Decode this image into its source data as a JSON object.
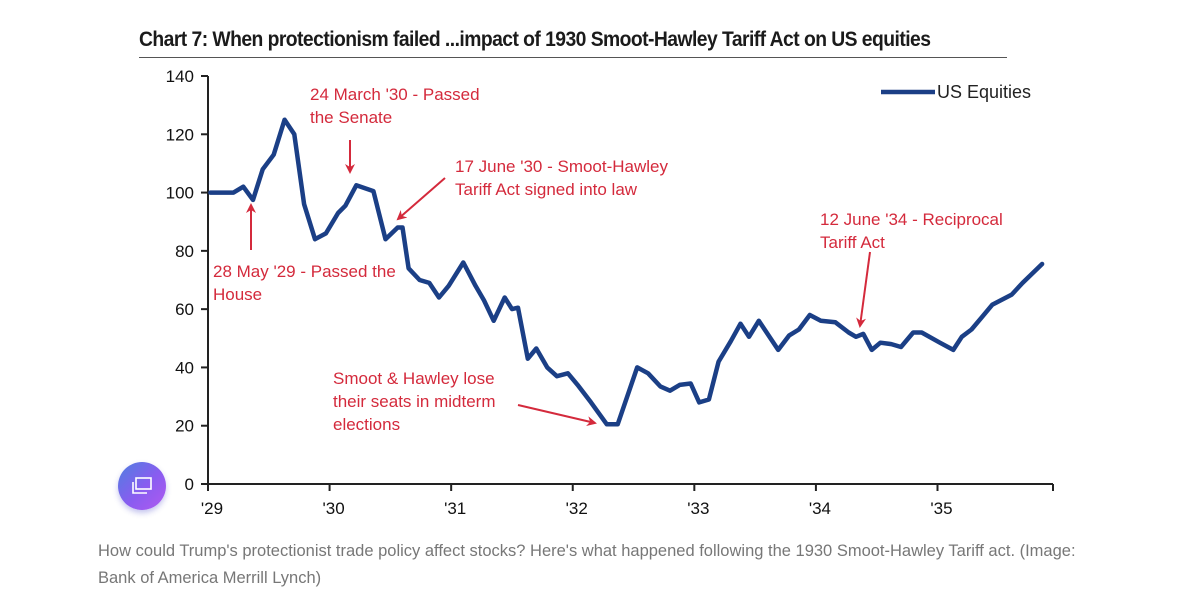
{
  "chart_data": {
    "type": "line",
    "title": "Chart 7: When protectionism failed ...impact of 1930 Smoot-Hawley Tariff Act on US equities",
    "xlabel": "",
    "ylabel": "",
    "xlim": [
      1929.0,
      1935.95
    ],
    "ylim": [
      0,
      140
    ],
    "x_ticks": [
      1929,
      1930,
      1931,
      1932,
      1933,
      1934,
      1935,
      1935.95
    ],
    "x_tick_labels": [
      "'29",
      "'30",
      "'31",
      "'32",
      "'33",
      "'34",
      "'35",
      ""
    ],
    "y_ticks": [
      0,
      20,
      40,
      60,
      80,
      100,
      120,
      140
    ],
    "y_tick_labels": [
      "0",
      "20",
      "40",
      "60",
      "80",
      "100",
      "120",
      "140"
    ],
    "grid": false,
    "legend": {
      "position": "top-right",
      "entries": [
        "US Equities"
      ]
    },
    "series": [
      {
        "name": "US Equities",
        "color": "#1b3f86",
        "x": [
          1929.02,
          1929.21,
          1929.29,
          1929.37,
          1929.45,
          1929.54,
          1929.63,
          1929.71,
          1929.79,
          1929.88,
          1929.97,
          1930.07,
          1930.13,
          1930.22,
          1930.36,
          1930.46,
          1930.56,
          1930.6,
          1930.65,
          1930.74,
          1930.82,
          1930.9,
          1930.98,
          1931.1,
          1931.2,
          1931.27,
          1931.35,
          1931.44,
          1931.5,
          1931.55,
          1931.63,
          1931.7,
          1931.79,
          1931.87,
          1931.96,
          1932.04,
          1932.15,
          1932.28,
          1932.37,
          1932.53,
          1932.62,
          1932.72,
          1932.8,
          1932.88,
          1932.97,
          1933.04,
          1933.12,
          1933.2,
          1933.3,
          1933.38,
          1933.45,
          1933.53,
          1933.69,
          1933.78,
          1933.86,
          1933.95,
          1934.04,
          1934.16,
          1934.27,
          1934.33,
          1934.39,
          1934.46,
          1934.53,
          1934.62,
          1934.7,
          1934.8,
          1934.87,
          1935.02,
          1935.13,
          1935.2,
          1935.28,
          1935.37,
          1935.45,
          1935.61,
          1935.7,
          1935.86
        ],
        "values": [
          100,
          100,
          102,
          97.5,
          108,
          113,
          125,
          120,
          96,
          84,
          86,
          93,
          95.5,
          102.5,
          100.5,
          84,
          88,
          88,
          74,
          70,
          69,
          64,
          68,
          76,
          68,
          63,
          56,
          64,
          60,
          60.5,
          43,
          46.5,
          40,
          37,
          38,
          34,
          28,
          20.5,
          20.5,
          40,
          38,
          33.5,
          32,
          34,
          34.5,
          28,
          29,
          42,
          49,
          55,
          50.5,
          56,
          46,
          51,
          53,
          58,
          56,
          55.5,
          52,
          50.5,
          51.5,
          46,
          48.5,
          48,
          47,
          52,
          52,
          48.5,
          46,
          50.5,
          53,
          57.5,
          61.5,
          65,
          69,
          75.5
        ]
      }
    ],
    "annotations": [
      {
        "lines": [
          "24 March '30 - Passed",
          "the Senate"
        ],
        "points_to": {
          "x": 1930.16,
          "y": 106
        },
        "from": "above"
      },
      {
        "lines": [
          "17 June '30 - Smoot-Hawley",
          "Tariff Act signed into law"
        ],
        "points_to": {
          "x": 1930.56,
          "y": 90
        },
        "from": "upper-right"
      },
      {
        "lines": [
          "28 May '29 - Passed the",
          "House"
        ],
        "points_to": {
          "x": 1929.36,
          "y": 96
        },
        "from": "below"
      },
      {
        "lines": [
          "12 June '34 - Reciprocal",
          "Tariff Act"
        ],
        "points_to": {
          "x": 1934.43,
          "y": 53
        },
        "from": "above"
      },
      {
        "lines": [
          "Smoot & Hawley lose",
          "their seats in midterm",
          "elections"
        ],
        "points_to": {
          "x": 1932.22,
          "y": 20.5
        },
        "from": "left"
      }
    ]
  },
  "caption": "How could Trump's protectionist trade policy affect stocks? Here's what happened following the 1930 Smoot-Hawley Tariff act. (Image: Bank of America Merrill Lynch)",
  "floating_button": {
    "icon": "gallery-icon"
  },
  "colors": {
    "series": "#1b3f86",
    "annotation": "#d42a3c",
    "caption": "#777777"
  }
}
